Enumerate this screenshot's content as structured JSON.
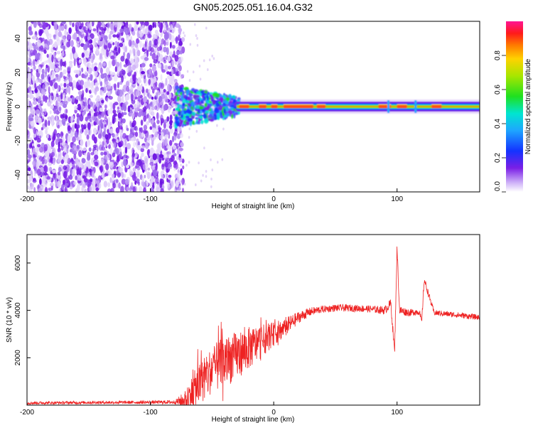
{
  "title": "GN05.2025.051.16.04.G32",
  "chart_data": [
    {
      "type": "heatmap",
      "xlabel": "Height of straight line (km)",
      "ylabel": "Frequency (Hz)",
      "xlim": [
        -200,
        167
      ],
      "ylim": [
        -50,
        50
      ],
      "x_ticks": [
        -200,
        -100,
        0,
        100
      ],
      "y_ticks": [
        40,
        20,
        0,
        -20,
        -40
      ],
      "colorbar": {
        "label": "Normalized spectral amplitude",
        "range": [
          0,
          1
        ],
        "ticks": [
          "0.0",
          "0.2",
          "0.4",
          "0.6",
          "0.8"
        ],
        "colormap": [
          "#ffffff",
          "#d9c4f5",
          "#a070ee",
          "#7a1fe6",
          "#1433ff",
          "#1ea6ff",
          "#00e5d0",
          "#1fe01f",
          "#a8e600",
          "#ffd200",
          "#ff7a00",
          "#ff1a1a",
          "#ff1493"
        ]
      },
      "regions": [
        {
          "description": "broadband noise",
          "x_range": [
            -200,
            -78
          ],
          "freq_range": [
            -50,
            50
          ],
          "amplitude": [
            0.0,
            0.25
          ]
        },
        {
          "description": "signal onset",
          "x_range": [
            -80,
            -30
          ],
          "center_freq": 0,
          "amplitude": [
            0.3,
            0.6
          ]
        },
        {
          "description": "carrier",
          "x_range": [
            -30,
            167
          ],
          "center_freq": 0,
          "amplitude": [
            0.6,
            1.0
          ]
        }
      ],
      "grid": false
    },
    {
      "type": "line",
      "xlabel": "Height of straight line (km)",
      "ylabel": "SNR (10 * v/v)",
      "xlim": [
        -200,
        167
      ],
      "ylim": [
        0,
        7200
      ],
      "x_ticks": [
        -200,
        -100,
        0,
        100
      ],
      "y_ticks": [
        2000,
        4000,
        6000
      ],
      "color": "#ee2222",
      "series": [
        {
          "x": [
            -200,
            -150,
            -100,
            -80,
            -72,
            -65,
            -58,
            -50,
            -40,
            -30,
            -20,
            -10,
            0,
            10,
            20,
            30,
            40,
            50,
            60,
            70,
            80,
            90,
            95,
            98,
            100,
            102,
            110,
            118,
            120,
            122,
            130,
            140,
            150,
            167
          ],
          "y": [
            90,
            110,
            120,
            130,
            200,
            600,
            1000,
            1500,
            1800,
            2100,
            2400,
            2700,
            3000,
            3300,
            3700,
            3950,
            4050,
            4100,
            4100,
            4080,
            4050,
            4000,
            4300,
            2200,
            6700,
            4000,
            3900,
            3950,
            3500,
            5300,
            3900,
            3850,
            3800,
            3700
          ],
          "noise_amplitude": [
            60,
            60,
            70,
            80,
            400,
            800,
            900,
            1000,
            1100,
            1000,
            900,
            700,
            500,
            400,
            250,
            180,
            150,
            150,
            150,
            150,
            150,
            180,
            200,
            200,
            200,
            200,
            150,
            150,
            150,
            150,
            120,
            120,
            120,
            120
          ]
        }
      ],
      "grid": false
    }
  ]
}
